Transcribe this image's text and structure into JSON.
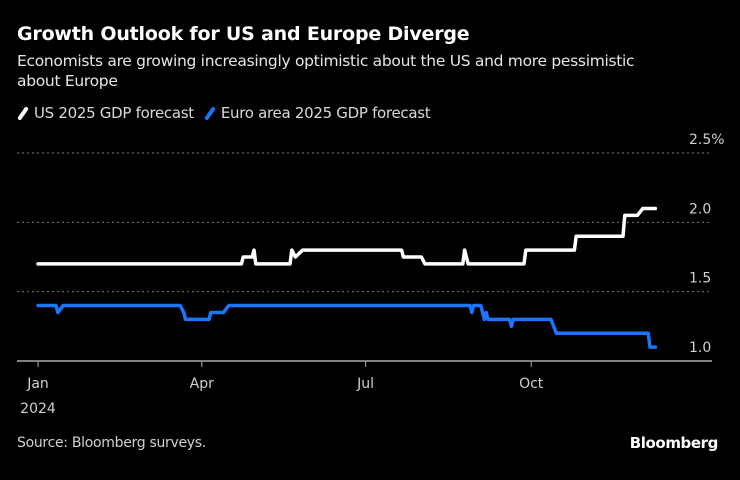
{
  "header": {
    "title": "Growth Outlook for US and Europe Diverge",
    "subtitle": "Economists are growing increasingly optimistic about the US and more pessimistic about Europe"
  },
  "legend": [
    {
      "label": "US 2025 GDP forecast",
      "color": "#ffffff"
    },
    {
      "label": "Euro area 2025 GDP forecast",
      "color": "#1a75ff"
    }
  ],
  "footer": {
    "source": "Source: Bloomberg surveys.",
    "brand": "Bloomberg"
  },
  "chart_data": {
    "type": "line",
    "title": "Growth Outlook for US and Europe Diverge",
    "subtitle": "Economists are growing increasingly optimistic about the US and more pessimistic about Europe",
    "xlabel": "",
    "ylabel": "",
    "x_range": [
      "2024-01-01",
      "2024-12-31"
    ],
    "ylim": [
      1.0,
      2.5
    ],
    "y_ticks": [
      {
        "value": 1.0,
        "label": "1.0"
      },
      {
        "value": 1.5,
        "label": "1.5"
      },
      {
        "value": 2.0,
        "label": "2.0"
      },
      {
        "value": 2.5,
        "label": "2.5%"
      }
    ],
    "x_ticks": [
      {
        "date": "2024-01-01",
        "label": "Jan",
        "sublabel": "2024"
      },
      {
        "date": "2024-04-01",
        "label": "Apr",
        "sublabel": ""
      },
      {
        "date": "2024-07-01",
        "label": "Jul",
        "sublabel": ""
      },
      {
        "date": "2024-10-01",
        "label": "Oct",
        "sublabel": ""
      }
    ],
    "grid": true,
    "legend_position": "top-left",
    "series": [
      {
        "name": "US 2025 GDP forecast",
        "color": "#ffffff",
        "points": [
          [
            "2024-01-01",
            1.7
          ],
          [
            "2024-04-23",
            1.7
          ],
          [
            "2024-04-24",
            1.75
          ],
          [
            "2024-04-29",
            1.75
          ],
          [
            "2024-04-30",
            1.8
          ],
          [
            "2024-05-01",
            1.7
          ],
          [
            "2024-05-20",
            1.7
          ],
          [
            "2024-05-21",
            1.8
          ],
          [
            "2024-05-23",
            1.75
          ],
          [
            "2024-05-27",
            1.8
          ],
          [
            "2024-07-21",
            1.8
          ],
          [
            "2024-07-22",
            1.75
          ],
          [
            "2024-08-01",
            1.75
          ],
          [
            "2024-08-03",
            1.7
          ],
          [
            "2024-08-24",
            1.7
          ],
          [
            "2024-08-25",
            1.8
          ],
          [
            "2024-08-27",
            1.7
          ],
          [
            "2024-09-27",
            1.7
          ],
          [
            "2024-09-28",
            1.8
          ],
          [
            "2024-10-25",
            1.8
          ],
          [
            "2024-10-26",
            1.9
          ],
          [
            "2024-11-21",
            1.9
          ],
          [
            "2024-11-22",
            2.05
          ],
          [
            "2024-11-29",
            2.05
          ],
          [
            "2024-12-02",
            2.1
          ],
          [
            "2024-12-09",
            2.1
          ]
        ]
      },
      {
        "name": "Euro area 2025 GDP forecast",
        "color": "#1a75ff",
        "points": [
          [
            "2024-01-01",
            1.4
          ],
          [
            "2024-01-11",
            1.4
          ],
          [
            "2024-01-12",
            1.35
          ],
          [
            "2024-01-15",
            1.4
          ],
          [
            "2024-03-20",
            1.4
          ],
          [
            "2024-03-22",
            1.35
          ],
          [
            "2024-03-23",
            1.3
          ],
          [
            "2024-04-05",
            1.3
          ],
          [
            "2024-04-06",
            1.35
          ],
          [
            "2024-04-13",
            1.35
          ],
          [
            "2024-04-16",
            1.4
          ],
          [
            "2024-08-28",
            1.4
          ],
          [
            "2024-08-29",
            1.35
          ],
          [
            "2024-08-30",
            1.4
          ],
          [
            "2024-09-03",
            1.4
          ],
          [
            "2024-09-05",
            1.3
          ],
          [
            "2024-09-06",
            1.35
          ],
          [
            "2024-09-07",
            1.3
          ],
          [
            "2024-09-19",
            1.3
          ],
          [
            "2024-09-20",
            1.25
          ],
          [
            "2024-09-21",
            1.3
          ],
          [
            "2024-10-12",
            1.3
          ],
          [
            "2024-10-15",
            1.2
          ],
          [
            "2024-12-05",
            1.2
          ],
          [
            "2024-12-06",
            1.1
          ],
          [
            "2024-12-09",
            1.1
          ]
        ]
      }
    ]
  }
}
